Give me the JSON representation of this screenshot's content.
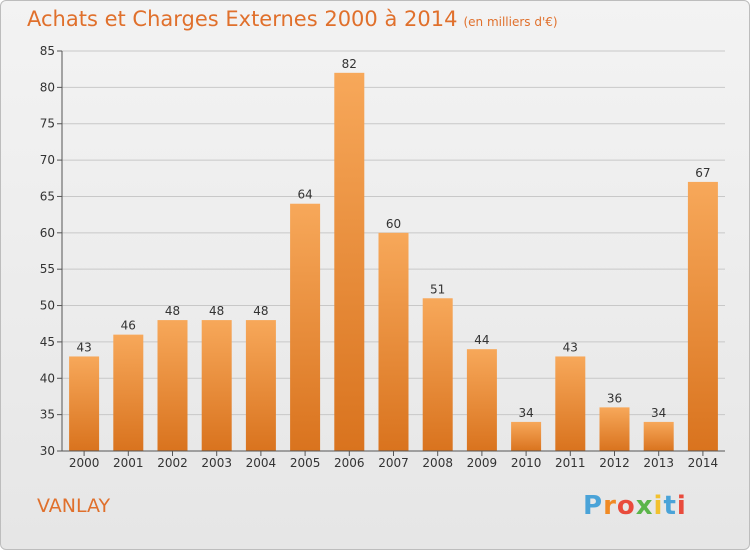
{
  "header": {
    "title": "Achats et Charges Externes 2000 à 2014",
    "subtitle": "(en milliers d'€)"
  },
  "footer": {
    "commune": "VANLAY",
    "logo_letters": [
      "P",
      "r",
      "o",
      "x",
      "i",
      "t",
      "i"
    ]
  },
  "colors": {
    "accent": "#e0702c",
    "bar_light": "#f7a85a",
    "bar_dark": "#d9731e",
    "grid": "#c8c8c8"
  },
  "chart_data": {
    "type": "bar",
    "categories": [
      "2000",
      "2001",
      "2002",
      "2003",
      "2004",
      "2005",
      "2006",
      "2007",
      "2008",
      "2009",
      "2010",
      "2011",
      "2012",
      "2013",
      "2014"
    ],
    "values": [
      43,
      46,
      48,
      48,
      48,
      64,
      82,
      60,
      51,
      44,
      34,
      43,
      36,
      34,
      67
    ],
    "ylim": [
      30,
      85
    ],
    "yticks": [
      30,
      35,
      40,
      45,
      50,
      55,
      60,
      65,
      70,
      75,
      80,
      85
    ],
    "grid": "horizontal",
    "data_labels": true
  }
}
